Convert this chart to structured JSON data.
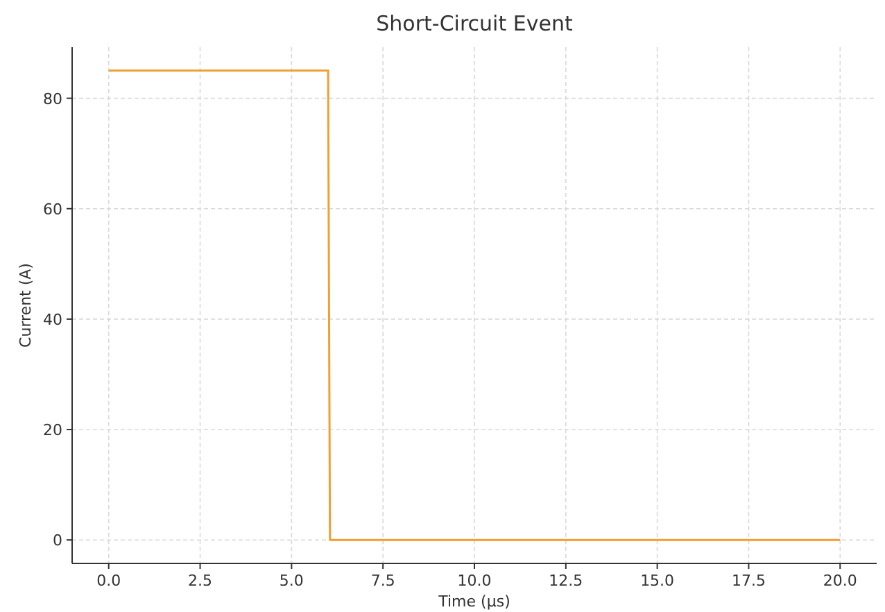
{
  "chart_data": {
    "type": "line",
    "title": "Short-Circuit Event",
    "xlabel": "Time (µs)",
    "ylabel": "Current (A)",
    "series": [
      {
        "color": "#f0a030",
        "x": [
          0,
          6,
          6.05,
          20
        ],
        "values": [
          85,
          85,
          0,
          0
        ]
      }
    ],
    "xlim": [
      -1,
      21
    ],
    "ylim": [
      -4.25,
      89.25
    ],
    "xticks": [
      {
        "value": 0,
        "label": "0.0"
      },
      {
        "value": 2.5,
        "label": "2.5"
      },
      {
        "value": 5,
        "label": "5.0"
      },
      {
        "value": 7.5,
        "label": "7.5"
      },
      {
        "value": 10,
        "label": "10.0"
      },
      {
        "value": 12.5,
        "label": "12.5"
      },
      {
        "value": 15,
        "label": "15.0"
      },
      {
        "value": 17.5,
        "label": "17.5"
      },
      {
        "value": 20,
        "label": "20.0"
      }
    ],
    "yticks": [
      0,
      20,
      40,
      60,
      80
    ],
    "grid": true,
    "line_style": "solid",
    "marker": "none"
  }
}
